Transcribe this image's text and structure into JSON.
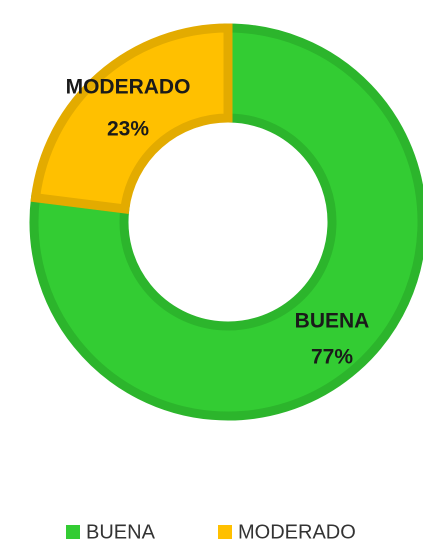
{
  "chart_data": {
    "type": "donut",
    "categories": [
      "BUENA",
      "MODERADO"
    ],
    "values": [
      77,
      23
    ],
    "value_labels": [
      "77%",
      "23%"
    ],
    "colors": [
      "#33cc33",
      "#ffc000"
    ],
    "border_colors": [
      "#2cb52c",
      "#e3ab00"
    ]
  }
}
